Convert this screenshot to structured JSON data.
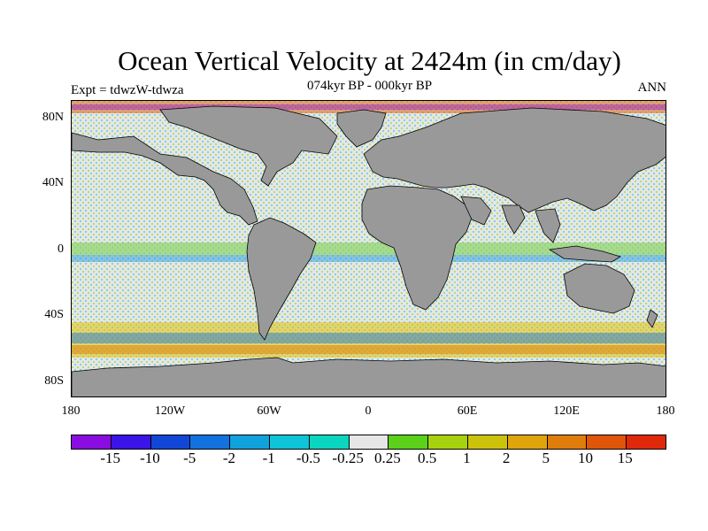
{
  "header": {
    "title": "Ocean Vertical Velocity at 2424m (in cm/day)",
    "subtitle": "074kyr BP - 000kyr BP",
    "left_label": "Expt = tdwzW-tdwza",
    "right_label": "ANN"
  },
  "map": {
    "type": "global-ocean-field-map",
    "projection": "cylindrical-equidistant",
    "lat_ticks": [
      "80N",
      "40N",
      "0",
      "40S",
      "80S"
    ],
    "lon_ticks": [
      "180",
      "120W",
      "60W",
      "0",
      "60E",
      "120E",
      "180"
    ],
    "land_color": "#999999"
  },
  "colorbar": {
    "colors": [
      "#8a0ce0",
      "#3b14e6",
      "#1246d6",
      "#1272e0",
      "#0fa2dd",
      "#0ec4d8",
      "#0ad6c0",
      "#e6e6e6",
      "#5cd11a",
      "#a6d10f",
      "#ccc20c",
      "#e0a50c",
      "#e07c0a",
      "#e0550a",
      "#e0280a"
    ],
    "labels": [
      "-15",
      "-10",
      "-5",
      "-2",
      "-1",
      "-0.5",
      "-0.25",
      "0.25",
      "0.5",
      "1",
      "2",
      "5",
      "10",
      "15"
    ]
  }
}
